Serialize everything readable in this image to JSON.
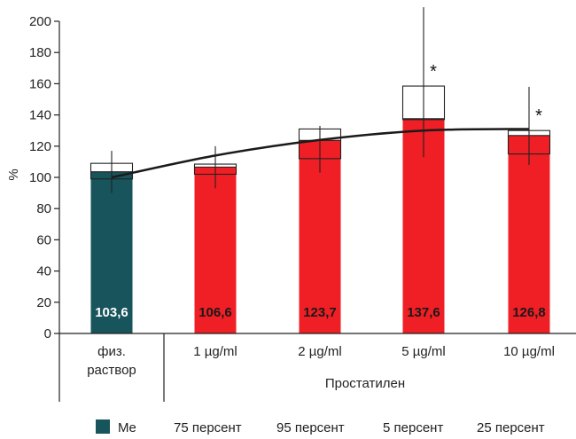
{
  "chart_data": {
    "type": "bar",
    "ylabel": "%",
    "ylim": [
      0,
      200
    ],
    "yticks": [
      0,
      20,
      40,
      60,
      80,
      100,
      120,
      140,
      160,
      180,
      200
    ],
    "categories": [
      "физ.\nраствор",
      "1 µg/ml",
      "2 µg/ml",
      "5 µg/ml",
      "10 µg/ml"
    ],
    "group_label": "Простатилен",
    "values": [
      103.6,
      106.6,
      123.7,
      137.6,
      126.8
    ],
    "value_labels": [
      "103,6",
      "106,6",
      "123,7",
      "137,6",
      "126,8"
    ],
    "box_low": [
      99,
      102,
      112,
      137,
      115
    ],
    "box_high": [
      109,
      108.5,
      131,
      158.5,
      130
    ],
    "whisker_low": [
      90,
      93,
      103,
      113,
      108
    ],
    "whisker_high": [
      117,
      120,
      133,
      209,
      158
    ],
    "significant": [
      false,
      false,
      false,
      true,
      true
    ],
    "significance_marker": "*",
    "trend": [
      100,
      114,
      124,
      130,
      131
    ],
    "colors": {
      "control": "#17545b",
      "treatment": "#ef1f25",
      "trend": "#1a1a1a"
    },
    "legend": [
      {
        "label": "Me",
        "swatch": true
      },
      {
        "label": "75 персент"
      },
      {
        "label": "95 персент"
      },
      {
        "label": "5 персент"
      },
      {
        "label": "25 персент"
      }
    ]
  }
}
